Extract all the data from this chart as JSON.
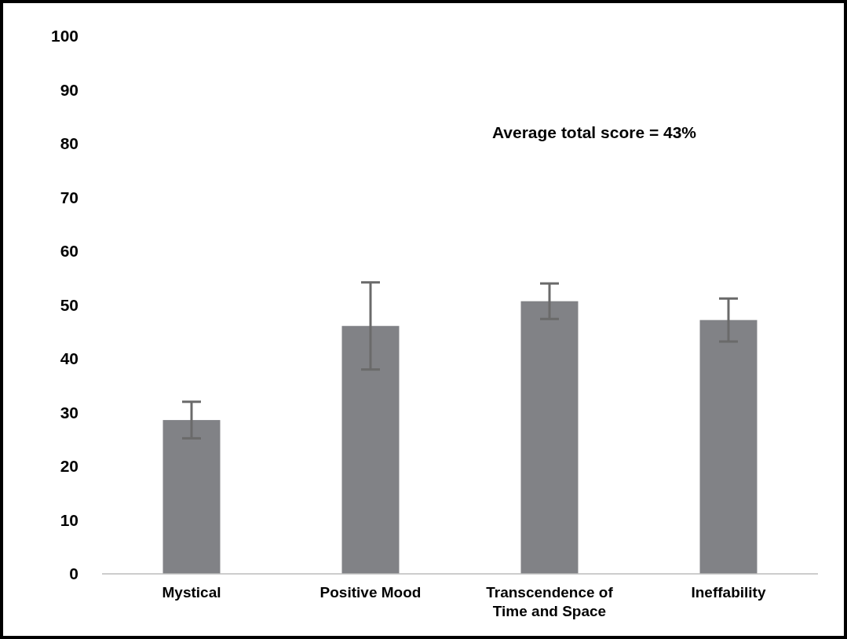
{
  "chart_data": {
    "type": "bar",
    "categories": [
      "Mystical",
      "Positive Mood",
      "Transcendence of Time and Space",
      "Ineffability"
    ],
    "values": [
      28.6,
      46.1,
      50.7,
      47.2
    ],
    "errors": [
      3.4,
      8.1,
      3.3,
      4.0
    ],
    "color": "#818286",
    "ylim": [
      0,
      100
    ],
    "yticks": [
      0,
      10,
      20,
      30,
      40,
      50,
      60,
      70,
      80,
      90,
      100
    ],
    "annotations": [
      "Average total score = 43%"
    ]
  }
}
